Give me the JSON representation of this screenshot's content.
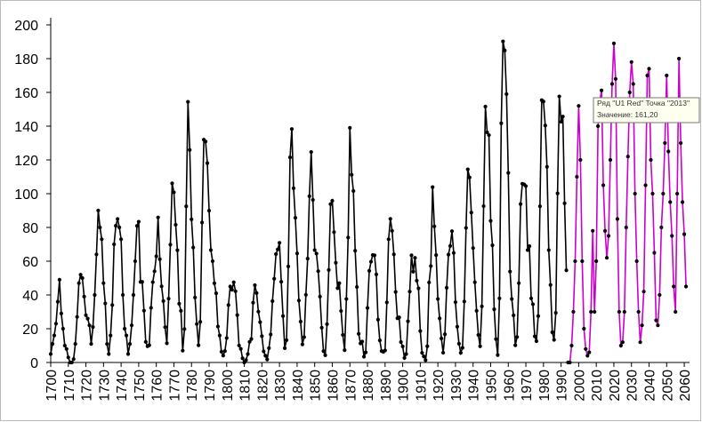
{
  "chart_data": {
    "type": "line",
    "xlim": [
      1700,
      2063
    ],
    "ylim": [
      0,
      200
    ],
    "xticks": [
      1700,
      1710,
      1720,
      1730,
      1740,
      1750,
      1760,
      1770,
      1780,
      1790,
      1800,
      1810,
      1820,
      1830,
      1840,
      1850,
      1860,
      1870,
      1880,
      1890,
      1900,
      1910,
      1920,
      1930,
      1940,
      1950,
      1960,
      1970,
      1980,
      1990,
      2000,
      2010,
      2020,
      2030,
      2040,
      2050,
      2060
    ],
    "yticks": [
      0,
      20,
      40,
      60,
      80,
      100,
      120,
      140,
      160,
      180,
      200
    ],
    "annotations": [
      "Ряд \"U1 Red\" Точка \"2013\"",
      "Значение: 161,20"
    ],
    "series": [
      {
        "color": "#000000",
        "x": [
          1700,
          1701,
          1702,
          1703,
          1704,
          1705,
          1706,
          1707,
          1708,
          1709,
          1710,
          1711,
          1712,
          1713,
          1714,
          1715,
          1716,
          1717,
          1718,
          1719,
          1720,
          1721,
          1722,
          1723,
          1724,
          1725,
          1726,
          1727,
          1728,
          1729,
          1730,
          1731,
          1732,
          1733,
          1734,
          1735,
          1736,
          1737,
          1738,
          1739,
          1740,
          1741,
          1742,
          1743,
          1744,
          1745,
          1746,
          1747,
          1748,
          1749,
          1750,
          1751,
          1752,
          1753,
          1754,
          1755,
          1756,
          1757,
          1758,
          1759,
          1760,
          1761,
          1762,
          1763,
          1764,
          1765,
          1766,
          1767,
          1768,
          1769,
          1770,
          1771,
          1772,
          1773,
          1774,
          1775,
          1776,
          1777,
          1778,
          1779,
          1780,
          1781,
          1782,
          1783,
          1784,
          1785,
          1786,
          1787,
          1788,
          1789,
          1790,
          1791,
          1792,
          1793,
          1794,
          1795,
          1796,
          1797,
          1798,
          1799,
          1800,
          1801,
          1802,
          1803,
          1804,
          1805,
          1806,
          1807,
          1808,
          1809,
          1810,
          1811,
          1812,
          1813,
          1814,
          1815,
          1816,
          1817,
          1818,
          1819,
          1820,
          1821,
          1822,
          1823,
          1824,
          1825,
          1826,
          1827,
          1828,
          1829,
          1830,
          1831,
          1832,
          1833,
          1834,
          1835,
          1836,
          1837,
          1838,
          1839,
          1840,
          1841,
          1842,
          1843,
          1844,
          1845,
          1846,
          1847,
          1848,
          1849,
          1850,
          1851,
          1852,
          1853,
          1854,
          1855,
          1856,
          1857,
          1858,
          1859,
          1860,
          1861,
          1862,
          1863,
          1864,
          1865,
          1866,
          1867,
          1868,
          1869,
          1870,
          1871,
          1872,
          1873,
          1874,
          1875,
          1876,
          1877,
          1878,
          1879,
          1880,
          1881,
          1882,
          1883,
          1884,
          1885,
          1886,
          1887,
          1888,
          1889,
          1890,
          1891,
          1892,
          1893,
          1894,
          1895,
          1896,
          1897,
          1898,
          1899,
          1900,
          1901,
          1902,
          1903,
          1904,
          1905,
          1906,
          1907,
          1908,
          1909,
          1910,
          1911,
          1912,
          1913,
          1914,
          1915,
          1916,
          1917,
          1918,
          1919,
          1920,
          1921,
          1922,
          1923,
          1924,
          1925,
          1926,
          1927,
          1928,
          1929,
          1930,
          1931,
          1932,
          1933,
          1934,
          1935,
          1936,
          1937,
          1938,
          1939,
          1940,
          1941,
          1942,
          1943,
          1944,
          1945,
          1946,
          1947,
          1948,
          1949,
          1950,
          1951,
          1952,
          1953,
          1954,
          1955,
          1956,
          1957,
          1958,
          1959,
          1960,
          1961,
          1962,
          1963,
          1964,
          1965,
          1966,
          1967,
          1968,
          1969,
          1970,
          1971,
          1972,
          1973,
          1974,
          1975,
          1976,
          1977,
          1978,
          1979,
          1980,
          1981,
          1982,
          1983,
          1984,
          1985,
          1986,
          1987,
          1988,
          1989,
          1990,
          1991,
          1992,
          1993
        ],
        "values": [
          5,
          11,
          16,
          23,
          36,
          49,
          29,
          20,
          10,
          8,
          3,
          0,
          0,
          2,
          11,
          27,
          47,
          52,
          50,
          39,
          28,
          26,
          22,
          11,
          21,
          40,
          64,
          90,
          80,
          73,
          47,
          35,
          11,
          5,
          16,
          34,
          70,
          81,
          85,
          80,
          73,
          40,
          20,
          16,
          5,
          11,
          22,
          40,
          60,
          80.9,
          83.4,
          47.7,
          47.8,
          30.7,
          12.2,
          9.6,
          10.2,
          32.4,
          47.6,
          54,
          62.9,
          85.9,
          61.2,
          45.1,
          36.4,
          20.9,
          11.4,
          37.8,
          69.8,
          106.1,
          100.8,
          81.6,
          66.5,
          34.8,
          30.6,
          7,
          19.8,
          92.5,
          154.4,
          125.9,
          84.8,
          68.1,
          38.5,
          22.8,
          10.2,
          24.1,
          82.9,
          132,
          130.9,
          118.1,
          89.9,
          66.6,
          60,
          46.9,
          41,
          21.3,
          16,
          6.4,
          4.1,
          6.8,
          14.5,
          34,
          45,
          43.1,
          47.5,
          42.2,
          28.1,
          10.1,
          8.1,
          2.5,
          0,
          1.4,
          5,
          12.2,
          13.9,
          35.4,
          45.8,
          41.1,
          30.1,
          23.9,
          15.6,
          6.6,
          4,
          1.8,
          8.5,
          16.6,
          36.3,
          49.6,
          64.2,
          67,
          70.9,
          47.8,
          27.5,
          8.5,
          13.2,
          56.9,
          121.5,
          138.3,
          103.2,
          85.7,
          64.6,
          36.7,
          24.2,
          10.7,
          15,
          40.1,
          61.5,
          98.5,
          124.7,
          96.3,
          66.6,
          64.5,
          54.1,
          39,
          20.6,
          6.7,
          4.3,
          22.7,
          54.8,
          93.8,
          95.8,
          77.2,
          59.1,
          44,
          47,
          30.5,
          16.3,
          7.3,
          37.6,
          74,
          139,
          111.2,
          101.6,
          66.2,
          44.7,
          17,
          11.3,
          12.4,
          3.4,
          6,
          32.3,
          54.3,
          59.7,
          63.7,
          63.5,
          52.2,
          25.4,
          13.1,
          6.8,
          6.3,
          7.1,
          35.6,
          73,
          85.1,
          78,
          64,
          41.8,
          26.2,
          26.7,
          12.1,
          9.5,
          2.7,
          5,
          24.4,
          42,
          63.5,
          53.8,
          62,
          48.5,
          43.9,
          18.6,
          5.7,
          3.6,
          1.4,
          9.6,
          47.4,
          57.1,
          103.9,
          80.6,
          63.6,
          37.6,
          26.1,
          14.2,
          5.8,
          16.7,
          44.3,
          63.9,
          69,
          77.8,
          64.9,
          35.7,
          21.2,
          11.1,
          5.7,
          8.7,
          36.1,
          79.7,
          114.4,
          109.6,
          88.8,
          67.8,
          47.5,
          30.6,
          16.3,
          9.6,
          33.2,
          92.6,
          151.6,
          136.3,
          134.7,
          83.9,
          69.4,
          31.5,
          13.9,
          4.4,
          38,
          141.7,
          190.2,
          184.8,
          159,
          112.3,
          53.9,
          37.6,
          27.9,
          10.2,
          15.1,
          47,
          93.8,
          105.9,
          105.5,
          104.5,
          66.6,
          68.9,
          38,
          34.5,
          15.5,
          12.6,
          27.5,
          92.5,
          155.4,
          154.6,
          140.4,
          115.9,
          66.6,
          45.9,
          17.9,
          13.4,
          29.4,
          100.2,
          157.6,
          142.6,
          145.7,
          94.3,
          54.6
        ]
      },
      {
        "color": "#cc00cc",
        "x": [
          1994,
          1995,
          1996,
          1997,
          1998,
          1999,
          2000,
          2001,
          2002,
          2003,
          2004,
          2005,
          2006,
          2007,
          2008,
          2009,
          2010,
          2011,
          2012,
          2013,
          2014,
          2015,
          2016,
          2017,
          2018,
          2019,
          2020,
          2021,
          2022,
          2023,
          2024,
          2025,
          2026,
          2027,
          2028,
          2029,
          2030,
          2031,
          2032,
          2033,
          2034,
          2035,
          2036,
          2037,
          2038,
          2039,
          2040,
          2041,
          2042,
          2043,
          2044,
          2045,
          2046,
          2047,
          2048,
          2049,
          2050,
          2051,
          2052,
          2053,
          2054,
          2055,
          2056,
          2057,
          2058,
          2059,
          2060,
          2061
        ],
        "values": [
          0,
          0,
          10,
          30,
          60,
          110,
          152,
          120,
          60,
          20,
          8,
          4,
          6,
          30,
          78,
          30,
          60,
          140,
          155,
          161.2,
          105,
          78,
          62,
          75,
          120,
          165,
          189,
          168,
          85,
          30,
          10,
          12,
          30,
          80,
          122,
          160,
          178,
          165,
          100,
          60,
          30,
          12,
          22,
          42,
          105,
          170,
          174,
          120,
          100,
          65,
          25,
          22,
          40,
          80,
          100,
          130,
          170,
          125,
          95,
          75,
          45,
          30,
          100,
          180,
          130,
          95,
          76,
          45
        ]
      }
    ]
  }
}
